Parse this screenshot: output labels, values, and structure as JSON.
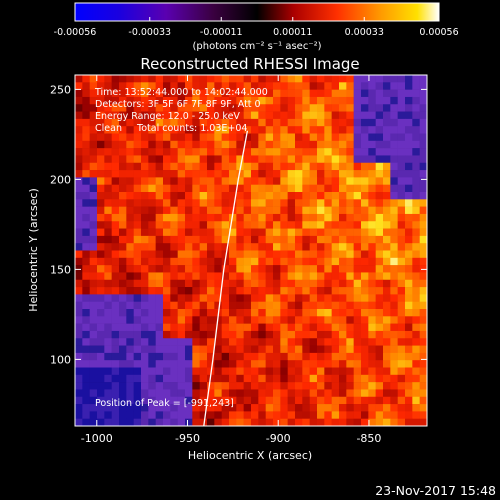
{
  "chart_data": {
    "type": "heatmap",
    "title": "Reconstructed RHESSI Image",
    "xlabel": "Heliocentric X (arcsec)",
    "ylabel": "Heliocentric Y (arcsec)",
    "xlim": [
      -1012,
      -818
    ],
    "ylim": [
      63,
      258
    ],
    "xticks": [
      -1000,
      -950,
      -900,
      -850
    ],
    "xtick_labels": [
      "-1000",
      "-950",
      "-900",
      "-850"
    ],
    "yticks": [
      100,
      150,
      200,
      250
    ],
    "ytick_labels": [
      "100",
      "150",
      "200",
      "250"
    ],
    "colorbar": {
      "range": [
        -0.00056,
        0.00056
      ],
      "tick_values": [
        -0.00056,
        -0.00033,
        -0.00011,
        0.00011,
        0.00033,
        0.00056
      ],
      "tick_labels": [
        "-0.00056",
        "-0.00033",
        "-0.00011",
        "0.00011",
        "0.00033",
        "0.00056"
      ],
      "units": "(photons cm⁻² s⁻¹ asec⁻²)"
    },
    "annotations": [
      "Detectors: 3F 5F 6F 7F 8F 9F, Att 0",
      "Energy Range: 12.0 - 25.0 keV",
      "Clean     Total counts: 1.03E+04"
    ],
    "time_range": {
      "label": "Time:",
      "date": "",
      "start": "13:52:44.000",
      "sep": "to",
      "end": "14:02:44.000"
    },
    "peak": {
      "label": "Position of Peak =",
      "value": "[-991,243]"
    },
    "limb_curve": [
      [
        -941,
        63
      ],
      [
        -936,
        100
      ],
      [
        -930,
        150
      ],
      [
        -922,
        200
      ],
      [
        -917,
        227
      ]
    ],
    "image_grid": {
      "cols": 48,
      "rows": 48,
      "colormap": "blue-purple-black-red-yellow-white"
    }
  },
  "footer_date": "23-Nov-2017 15:48",
  "colors": {
    "background": "#000000",
    "text": "#ffffff",
    "limb": "#ffffff"
  }
}
